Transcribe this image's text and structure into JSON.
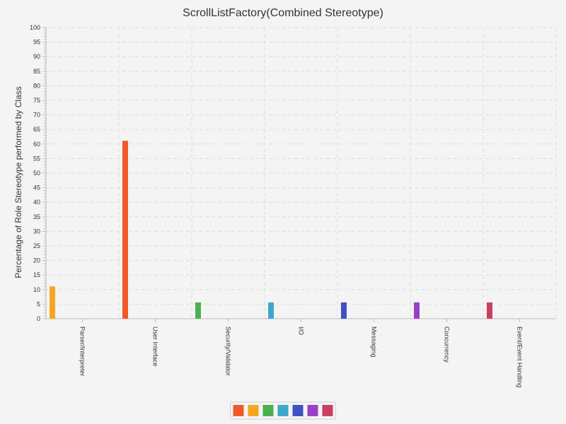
{
  "chart_data": {
    "type": "bar",
    "title": "ScrollListFactory(Combined Stereotype)",
    "xlabel": "",
    "ylabel": "Percentage of Role Stereotype performed by Class",
    "ylim": [
      0,
      100
    ],
    "ytick_step": 5,
    "yticks": [
      "0",
      "5",
      "10",
      "15",
      "20",
      "25",
      "30",
      "35",
      "40",
      "45",
      "50",
      "55",
      "60",
      "65",
      "70",
      "75",
      "80",
      "85",
      "90",
      "95",
      "100"
    ],
    "grid": true,
    "legend_position": "bottom-center",
    "categories": [
      "Parser/Interpreter",
      "User Interface",
      "Security/Validator",
      "I/O",
      "Messaging",
      "Concurrency",
      "Event/Event Handling"
    ],
    "series": [
      {
        "color": "#f05a28",
        "values": [
          0,
          61.1,
          0,
          0,
          0,
          0,
          0
        ]
      },
      {
        "color": "#f5a623",
        "values": [
          11.1,
          0,
          0,
          0,
          0,
          0,
          0
        ]
      },
      {
        "color": "#4caf50",
        "values": [
          0,
          0,
          5.6,
          0,
          0,
          0,
          0
        ]
      },
      {
        "color": "#3fa7c9",
        "values": [
          0,
          0,
          0,
          5.6,
          0,
          0,
          0
        ]
      },
      {
        "color": "#3f51c4",
        "values": [
          0,
          0,
          0,
          0,
          5.6,
          0,
          0
        ]
      },
      {
        "color": "#9a3fc9",
        "values": [
          0,
          0,
          0,
          0,
          0,
          5.6,
          0
        ]
      },
      {
        "color": "#c93f62",
        "values": [
          0,
          0,
          0,
          0,
          0,
          0,
          5.6
        ]
      }
    ]
  }
}
